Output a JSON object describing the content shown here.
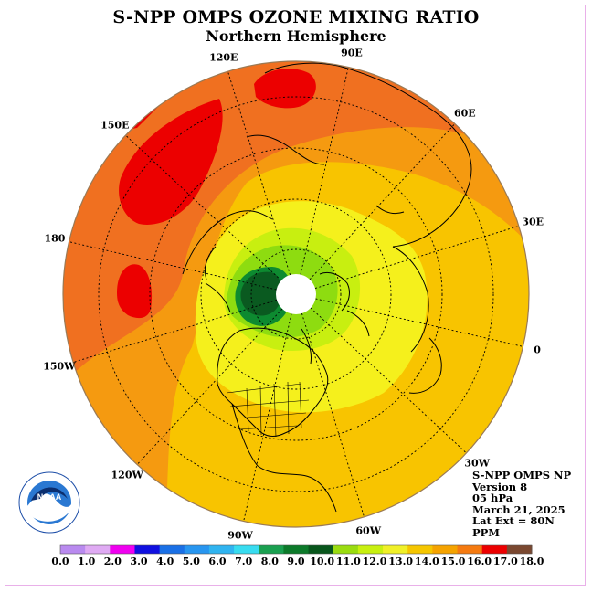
{
  "title": "S-NPP OMPS OZONE MIXING RATIO",
  "subtitle": "Northern Hemisphere",
  "longitude_labels": [
    {
      "text": "90E",
      "lon": 90
    },
    {
      "text": "60E",
      "lon": 60
    },
    {
      "text": "30E",
      "lon": 30
    },
    {
      "text": "0",
      "lon": 0
    },
    {
      "text": "30W",
      "lon": -30
    },
    {
      "text": "60W",
      "lon": -60
    },
    {
      "text": "90W",
      "lon": -90
    },
    {
      "text": "120W",
      "lon": -120
    },
    {
      "text": "150W",
      "lon": -150
    },
    {
      "text": "180",
      "lon": 180
    },
    {
      "text": "150E",
      "lon": 150
    },
    {
      "text": "120E",
      "lon": 120
    }
  ],
  "info": {
    "line1": "S-NPP OMPS NP",
    "line2": "Version 8",
    "line3": "05 hPa",
    "line4": "March 21, 2025",
    "line5": "Lat Ext = 80N",
    "line6": "PPM"
  },
  "logo": {
    "text": "NOAA",
    "ring_text": "NATIONAL OCEANIC AND ATMOSPHERIC ADMINISTRATION · U.S. DEPARTMENT OF COMMERCE"
  },
  "colorbar": {
    "ticks": [
      "0.0",
      "1.0",
      "2.0",
      "3.0",
      "4.0",
      "5.0",
      "6.0",
      "7.0",
      "8.0",
      "9.0",
      "10.0",
      "11.0",
      "12.0",
      "13.0",
      "14.0",
      "15.0",
      "16.0",
      "17.0",
      "18.0"
    ],
    "colors": [
      "#b98aef",
      "#dfaaf3",
      "#f000f0",
      "#1010e0",
      "#1a70e6",
      "#2896f0",
      "#30b4f0",
      "#38dcf0",
      "#1aa050",
      "#0c7a2a",
      "#08561c",
      "#9adc10",
      "#c8f010",
      "#f0f028",
      "#f5c600",
      "#f5a300",
      "#f57a10",
      "#ec0000",
      "#7a4830"
    ]
  },
  "colors": {
    "ocean_outer": "#f07020",
    "level_orange": "#f59a10",
    "level_gold": "#f8c400",
    "level_yellow": "#f5f01c",
    "level_ygreen": "#c8ef10",
    "level_green": "#8edc10",
    "level_mid_green": "#0d8a30",
    "level_dark_green": "#0a5a20",
    "max_red": "#ec0000",
    "frame": "#e9b0e9"
  }
}
